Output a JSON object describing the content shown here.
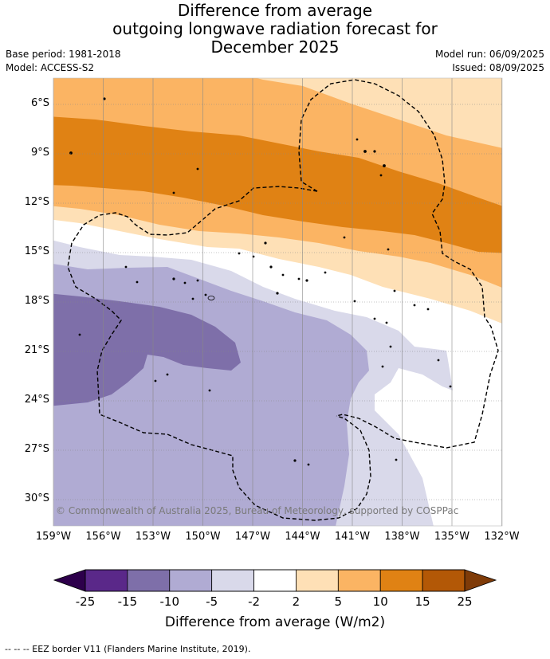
{
  "title_lines": [
    "Difference from average",
    "outgoing longwave radiation forecast for",
    "December 2025"
  ],
  "base_period": "Base period: 1981-2018",
  "model": "Model: ACCESS-S2",
  "model_run": "Model run: 06/09/2025",
  "issued": "Issued: 08/09/2025",
  "lat_ticks": [
    "6°S",
    "9°S",
    "12°S",
    "15°S",
    "18°S",
    "21°S",
    "24°S",
    "27°S",
    "30°S"
  ],
  "lon_ticks": [
    "159°W",
    "156°W",
    "153°W",
    "150°W",
    "147°W",
    "144°W",
    "141°W",
    "138°W",
    "135°W",
    "132°W"
  ],
  "copyright": "© Commonwealth of Australia 2025, Bureau of Meteorology, supported by COSPPac",
  "colorbar": {
    "labels": [
      "-25",
      "-15",
      "-10",
      "-5",
      "-2",
      "2",
      "5",
      "10",
      "15",
      "25"
    ],
    "colors": [
      "#5a2889",
      "#7e6fa9",
      "#b0abd3",
      "#d9d9ea",
      "#ffffff",
      "#fee0b6",
      "#fbb463",
      "#e08214",
      "#b35806"
    ],
    "under_color": "#2d004b",
    "over_color": "#7f3b08",
    "title": "Difference from average (W/m2)"
  },
  "footnote": "-- -- -- EEZ border V11 (Flanders Marine Institute, 2019).",
  "colors": {
    "grid": "#888888",
    "border": "#000000"
  }
}
